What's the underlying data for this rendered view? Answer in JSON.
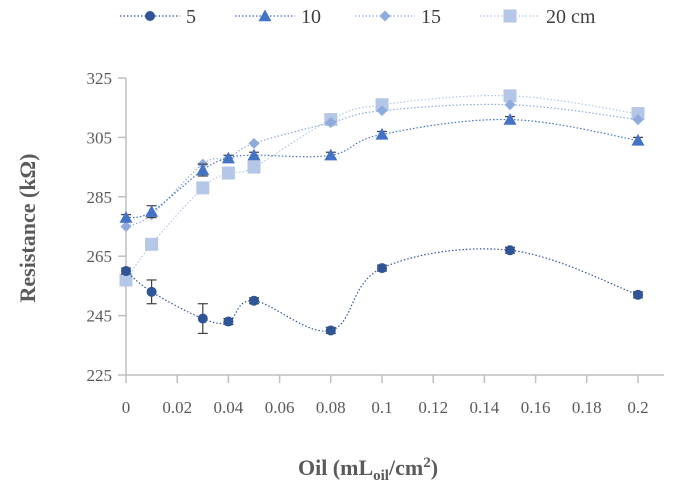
{
  "chart_data": {
    "type": "scatter",
    "title": "",
    "xlabel": "Oil (mL",
    "xlabel_sub": "oil",
    "xlabel_unit": "/cm",
    "xlabel_sup": "2",
    "xlabel_close": ")",
    "ylabel": "Resistance (kΩ)",
    "xlim": [
      0,
      0.2
    ],
    "ylim": [
      225,
      325
    ],
    "xticks": [
      0,
      0.02,
      0.04,
      0.06,
      0.08,
      0.1,
      0.12,
      0.14,
      0.16,
      0.18,
      0.2
    ],
    "xtick_labels": [
      "0",
      "0.02",
      "0.04",
      "0.06",
      "0.08",
      "0.1",
      "0.12",
      "0.14",
      "0.16",
      "0.18",
      "0.2"
    ],
    "yticks": [
      225,
      245,
      265,
      285,
      305,
      325
    ],
    "ytick_labels": [
      "225",
      "245",
      "265",
      "285",
      "305",
      "325"
    ],
    "grid": false,
    "legend_position": "top",
    "series": [
      {
        "name": "5",
        "marker": "circle",
        "color": "#2f5597",
        "x": [
          0,
          0.01,
          0.03,
          0.04,
          0.05,
          0.08,
          0.1,
          0.15,
          0.2
        ],
        "y": [
          260,
          253,
          244,
          243,
          250,
          240,
          261,
          267,
          252
        ],
        "err": [
          1,
          4,
          5,
          1,
          1,
          1,
          1,
          1,
          1
        ]
      },
      {
        "name": "10",
        "marker": "triangle",
        "color": "#4472c4",
        "x": [
          0,
          0.01,
          0.03,
          0.04,
          0.05,
          0.08,
          0.1,
          0.15,
          0.2
        ],
        "y": [
          278,
          280,
          294,
          298,
          299,
          299,
          306,
          311,
          304
        ],
        "err": [
          1,
          2,
          2,
          1,
          1,
          1,
          1,
          1,
          1
        ]
      },
      {
        "name": "15",
        "marker": "diamond",
        "color": "#8faadc",
        "x": [
          0,
          0.01,
          0.03,
          0.04,
          0.05,
          0.08,
          0.1,
          0.15,
          0.2
        ],
        "y": [
          275,
          279,
          296,
          298,
          303,
          310,
          314,
          316,
          311
        ],
        "err": [
          0,
          0,
          0,
          0,
          0,
          0,
          0,
          0,
          0
        ]
      },
      {
        "name": "20 cm",
        "marker": "square",
        "color": "#b4c7e7",
        "x": [
          0,
          0.01,
          0.03,
          0.04,
          0.05,
          0.08,
          0.1,
          0.15,
          0.2
        ],
        "y": [
          257,
          269,
          288,
          293,
          295,
          311,
          316,
          319,
          313
        ],
        "err": [
          0,
          0,
          0,
          0,
          0,
          0,
          0,
          0,
          0
        ]
      }
    ]
  }
}
